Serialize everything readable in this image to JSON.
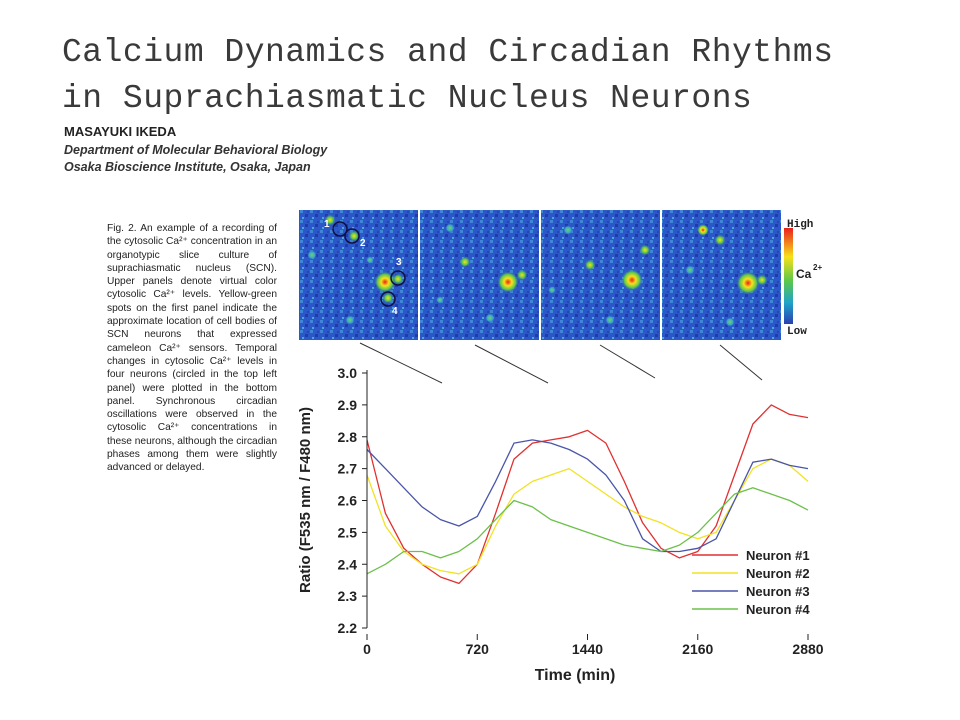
{
  "title": {
    "line1": "Calcium Dynamics and Circadian Rhythms",
    "line2": "in Suprachiasmatic Nucleus Neurons"
  },
  "author": "MASAYUKI IKEDA",
  "affiliation": {
    "line1": "Department of Molecular Behavioral Biology",
    "line2": "Osaka Bioscience Institute, Osaka, Japan"
  },
  "caption": "Fig. 2. An example of a recording of the cytosolic Ca²⁺ concentration in an organotypic slice culture of suprachiasmatic nucleus (SCN). Upper panels denote virtual color cytosolic Ca²⁺ levels. Yellow-green spots on the first panel indicate the approximate location of cell bodies of SCN neurons that expressed cameleon Ca²⁺ sensors. Temporal changes in cytosolic Ca²⁺ levels in four neurons (circled in the top left panel) were plotted in the bottom panel. Synchronous circadian oscillations were observed in the cytosolic Ca²⁺ concentrations in these neurons, although the circadian phases among them were slightly advanced or delayed.",
  "images": {
    "neuron_labels": [
      "1",
      "2",
      "3",
      "4"
    ],
    "colorbar": {
      "high": "High",
      "low": "Low",
      "label": "Ca",
      "superscript": "2+",
      "colors": [
        "#e8201c",
        "#f7e11a",
        "#5cc84a",
        "#1fa3c9",
        "#2a3fb0"
      ]
    }
  },
  "chart_data": {
    "type": "line",
    "title": "",
    "xlabel": "Time (min)",
    "ylabel": "Ratio (F535 nm / F480 nm)",
    "xlim": [
      0,
      2880
    ],
    "ylim": [
      2.2,
      3.0
    ],
    "xticks": [
      0,
      720,
      1440,
      2160,
      2880
    ],
    "xtick_labels": [
      "0",
      "720",
      "1440",
      "2160",
      "2880"
    ],
    "yticks": [
      2.2,
      2.3,
      2.4,
      2.5,
      2.6,
      2.7,
      2.8,
      2.9,
      3.0
    ],
    "ytick_labels": [
      "2.2",
      "2.3",
      "2.4",
      "2.5",
      "2.6",
      "2.7",
      "2.8",
      "2.9",
      "3.0"
    ],
    "grid": false,
    "legend_position": "bottom-right",
    "x": [
      0,
      120,
      240,
      360,
      480,
      600,
      720,
      840,
      960,
      1080,
      1200,
      1320,
      1440,
      1560,
      1680,
      1800,
      1920,
      2040,
      2160,
      2280,
      2400,
      2520,
      2640,
      2760,
      2880
    ],
    "series": [
      {
        "name": "Neuron #1",
        "color": "#e03030",
        "values": [
          2.79,
          2.56,
          2.45,
          2.4,
          2.36,
          2.34,
          2.4,
          2.56,
          2.73,
          2.78,
          2.79,
          2.8,
          2.82,
          2.78,
          2.66,
          2.53,
          2.45,
          2.42,
          2.44,
          2.52,
          2.68,
          2.84,
          2.9,
          2.87,
          2.86
        ]
      },
      {
        "name": "Neuron #2",
        "color": "#f2e224",
        "values": [
          2.68,
          2.52,
          2.44,
          2.4,
          2.38,
          2.37,
          2.4,
          2.52,
          2.62,
          2.66,
          2.68,
          2.7,
          2.66,
          2.62,
          2.58,
          2.55,
          2.53,
          2.5,
          2.48,
          2.5,
          2.6,
          2.7,
          2.73,
          2.71,
          2.66
        ]
      },
      {
        "name": "Neuron #3",
        "color": "#4a55a8",
        "values": [
          2.76,
          2.7,
          2.64,
          2.58,
          2.54,
          2.52,
          2.55,
          2.66,
          2.78,
          2.79,
          2.78,
          2.76,
          2.73,
          2.68,
          2.6,
          2.48,
          2.44,
          2.44,
          2.45,
          2.48,
          2.6,
          2.72,
          2.73,
          2.71,
          2.7
        ]
      },
      {
        "name": "Neuron #4",
        "color": "#6cc04a",
        "values": [
          2.37,
          2.4,
          2.44,
          2.44,
          2.42,
          2.44,
          2.48,
          2.54,
          2.6,
          2.58,
          2.54,
          2.52,
          2.5,
          2.48,
          2.46,
          2.45,
          2.44,
          2.46,
          2.5,
          2.56,
          2.62,
          2.64,
          2.62,
          2.6,
          2.57
        ]
      }
    ]
  }
}
